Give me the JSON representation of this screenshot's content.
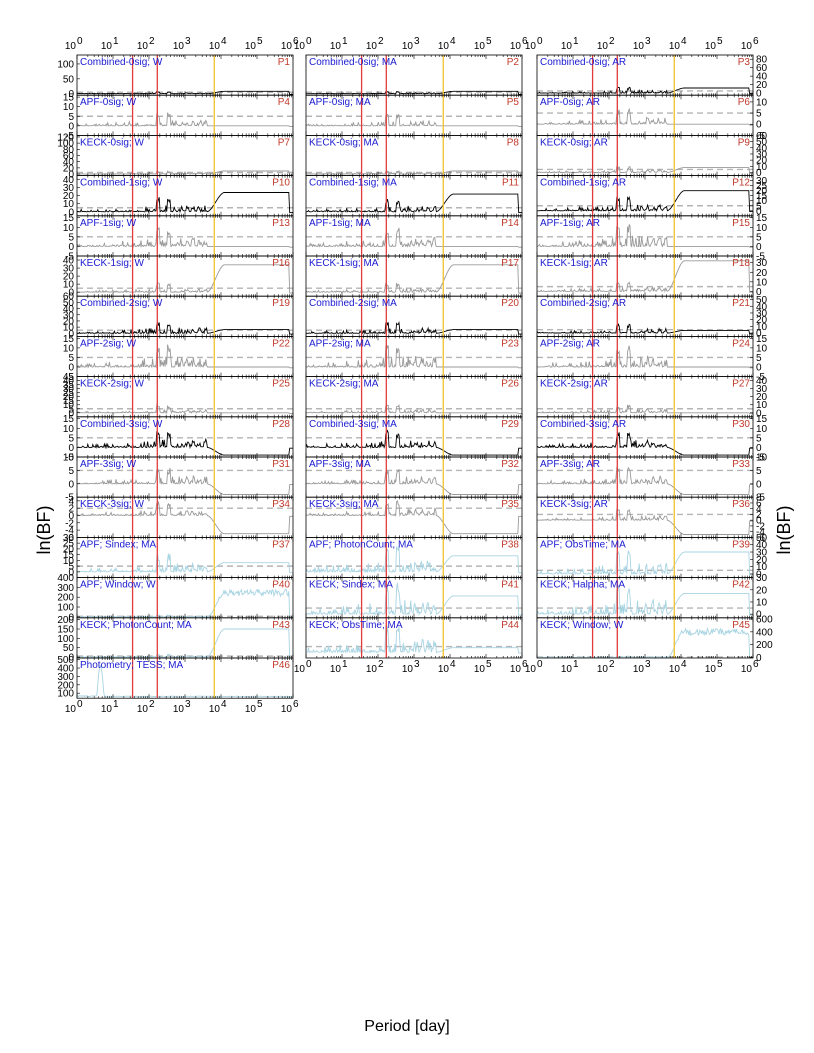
{
  "chart_data": {
    "type": "line",
    "xlabel": "Period [day]",
    "ylabel": "ln(BF)",
    "xscale": "log",
    "xlim": [
      1,
      1000000
    ],
    "x_tick_labels": [
      "10^0",
      "10^1",
      "10^2",
      "10^3",
      "10^4",
      "10^5",
      "10^6"
    ],
    "x_tick_base": "10",
    "x_tick_exponents": [
      "0",
      "1",
      "2",
      "3",
      "4",
      "5",
      "6"
    ],
    "vertical_lines": [
      {
        "period": 35,
        "color": "#e23b3b"
      },
      {
        "period": 170,
        "color": "#e23b3b"
      },
      {
        "period": 6500,
        "color": "#f2c12e"
      }
    ],
    "threshold_style": "gray dashed",
    "colors": {
      "combined": "#000000",
      "instrument": "#9a9a9a",
      "activity": "#a8d4e2",
      "title": "#1a1ad0",
      "id": "#c0392b"
    },
    "panels": [
      {
        "id": "P1",
        "title": "Combined-0sig; W",
        "col": 0,
        "row": 0,
        "ylim": [
          -5,
          130
        ],
        "yticks": [
          0,
          50,
          100
        ],
        "threshold": 5,
        "color": "combined",
        "peak": 8,
        "plateau": 8
      },
      {
        "id": "P2",
        "title": "Combined-0sig; MA",
        "col": 1,
        "row": 0,
        "ylim": [
          -5,
          130
        ],
        "yticks": [],
        "threshold": 5,
        "color": "combined",
        "peak": 8,
        "plateau": 8
      },
      {
        "id": "P3",
        "title": "Combined-0sig; AR",
        "col": 2,
        "row": 0,
        "ylim": [
          -5,
          90
        ],
        "yticks": [
          0,
          20,
          40,
          60,
          80
        ],
        "threshold": 5,
        "color": "combined",
        "peak": 14,
        "plateau": 12
      },
      {
        "id": "P4",
        "title": "APF-0sig; W",
        "col": 0,
        "row": 1,
        "ylim": [
          -5,
          16
        ],
        "yticks": [
          -5,
          0,
          5,
          10,
          15
        ],
        "threshold": 5,
        "color": "instrument",
        "peak": 7,
        "plateau": 0
      },
      {
        "id": "P5",
        "title": "APF-0sig; MA",
        "col": 1,
        "row": 1,
        "ylim": [
          -5,
          16
        ],
        "yticks": [],
        "threshold": 5,
        "color": "instrument",
        "peak": 7,
        "plateau": 0
      },
      {
        "id": "P6",
        "title": "APF-0sig; AR",
        "col": 2,
        "row": 1,
        "ylim": [
          -5,
          13
        ],
        "yticks": [
          -5,
          0,
          5,
          10
        ],
        "threshold": 5,
        "color": "instrument",
        "peak": 7,
        "plateau": 0
      },
      {
        "id": "P7",
        "title": "KECK-0sig; W",
        "col": 0,
        "row": 2,
        "ylim": [
          -5,
          125
        ],
        "yticks": [
          0,
          20,
          40,
          60,
          80,
          100,
          120
        ],
        "threshold": 5,
        "color": "instrument",
        "peak": 10,
        "plateau": 10
      },
      {
        "id": "P8",
        "title": "KECK-0sig; MA",
        "col": 1,
        "row": 2,
        "ylim": [
          -5,
          125
        ],
        "yticks": [],
        "threshold": 5,
        "color": "instrument",
        "peak": 10,
        "plateau": 10
      },
      {
        "id": "P9",
        "title": "KECK-0sig; AR",
        "col": 2,
        "row": 2,
        "ylim": [
          -5,
          60
        ],
        "yticks": [
          0,
          10,
          20,
          30,
          40,
          50,
          60
        ],
        "threshold": 5,
        "color": "instrument",
        "peak": 10,
        "plateau": 8
      },
      {
        "id": "P10",
        "title": "Combined-1sig; W",
        "col": 0,
        "row": 3,
        "ylim": [
          -5,
          45
        ],
        "yticks": [
          0,
          10,
          20,
          30,
          40
        ],
        "threshold": 5,
        "color": "combined",
        "peak": 18,
        "plateau": 24
      },
      {
        "id": "P11",
        "title": "Combined-1sig; MA",
        "col": 1,
        "row": 3,
        "ylim": [
          -5,
          45
        ],
        "yticks": [],
        "threshold": 5,
        "color": "combined",
        "peak": 16,
        "plateau": 22
      },
      {
        "id": "P12",
        "title": "Combined-1sig; AR",
        "col": 2,
        "row": 3,
        "ylim": [
          -5,
          35
        ],
        "yticks": [
          0,
          5,
          10,
          15,
          20,
          25,
          30
        ],
        "threshold": 5,
        "color": "combined",
        "peak": 14,
        "plateau": 20
      },
      {
        "id": "P13",
        "title": "APF-1sig; W",
        "col": 0,
        "row": 4,
        "ylim": [
          -5,
          16
        ],
        "yticks": [
          -5,
          0,
          5,
          10,
          15
        ],
        "threshold": 5,
        "color": "instrument",
        "peak": 10,
        "plateau": 0
      },
      {
        "id": "P14",
        "title": "APF-1sig; MA",
        "col": 1,
        "row": 4,
        "ylim": [
          -5,
          16
        ],
        "yticks": [],
        "threshold": 5,
        "color": "instrument",
        "peak": 10,
        "plateau": 0
      },
      {
        "id": "P15",
        "title": "APF-1sig; AR",
        "col": 2,
        "row": 4,
        "ylim": [
          -5,
          16
        ],
        "yticks": [
          -5,
          0,
          5,
          10,
          15
        ],
        "threshold": 5,
        "color": "instrument",
        "peak": 12,
        "plateau": 0
      },
      {
        "id": "P16",
        "title": "KECK-1sig; W",
        "col": 0,
        "row": 5,
        "ylim": [
          -5,
          45
        ],
        "yticks": [
          0,
          10,
          20,
          30,
          40
        ],
        "threshold": 5,
        "color": "instrument",
        "peak": 12,
        "plateau": 34
      },
      {
        "id": "P17",
        "title": "KECK-1sig; MA",
        "col": 1,
        "row": 5,
        "ylim": [
          -5,
          45
        ],
        "yticks": [],
        "threshold": 5,
        "color": "instrument",
        "peak": 12,
        "plateau": 34
      },
      {
        "id": "P18",
        "title": "KECK-1sig; AR",
        "col": 2,
        "row": 5,
        "ylim": [
          -5,
          37
        ],
        "yticks": [
          0,
          10,
          20,
          30
        ],
        "threshold": 5,
        "color": "instrument",
        "peak": 10,
        "plateau": 32
      },
      {
        "id": "P19",
        "title": "Combined-2sig; W",
        "col": 0,
        "row": 6,
        "ylim": [
          -5,
          60
        ],
        "yticks": [
          0,
          10,
          20,
          30,
          40,
          50,
          60
        ],
        "threshold": 5,
        "color": "combined",
        "peak": 20,
        "plateau": 6
      },
      {
        "id": "P20",
        "title": "Combined-2sig; MA",
        "col": 1,
        "row": 6,
        "ylim": [
          -5,
          60
        ],
        "yticks": [],
        "threshold": 5,
        "color": "combined",
        "peak": 18,
        "plateau": 6
      },
      {
        "id": "P21",
        "title": "Combined-2sig; AR",
        "col": 2,
        "row": 6,
        "ylim": [
          -5,
          55
        ],
        "yticks": [
          0,
          10,
          20,
          30,
          40,
          50
        ],
        "threshold": 5,
        "color": "combined",
        "peak": 14,
        "plateau": 4
      },
      {
        "id": "P22",
        "title": "APF-2sig; W",
        "col": 0,
        "row": 7,
        "ylim": [
          -5,
          16
        ],
        "yticks": [
          -5,
          0,
          5,
          10,
          15
        ],
        "threshold": 5,
        "color": "instrument",
        "peak": 12,
        "plateau": 0
      },
      {
        "id": "P23",
        "title": "APF-2sig; MA",
        "col": 1,
        "row": 7,
        "ylim": [
          -5,
          16
        ],
        "yticks": [],
        "threshold": 5,
        "color": "instrument",
        "peak": 12,
        "plateau": 0
      },
      {
        "id": "P24",
        "title": "APF-2sig; AR",
        "col": 2,
        "row": 7,
        "ylim": [
          -5,
          16
        ],
        "yticks": [
          -5,
          0,
          5,
          10,
          15
        ],
        "threshold": 5,
        "color": "instrument",
        "peak": 12,
        "plateau": 0
      },
      {
        "id": "P25",
        "title": "KECK-2sig; W",
        "col": 0,
        "row": 8,
        "ylim": [
          -5,
          45
        ],
        "yticks": [
          0,
          5,
          10,
          15,
          20,
          25,
          30,
          35,
          40,
          45
        ],
        "threshold": 5,
        "color": "instrument",
        "peak": 10,
        "plateau": 0
      },
      {
        "id": "P26",
        "title": "KECK-2sig; MA",
        "col": 1,
        "row": 8,
        "ylim": [
          -5,
          45
        ],
        "yticks": [],
        "threshold": 5,
        "color": "instrument",
        "peak": 10,
        "plateau": 0
      },
      {
        "id": "P27",
        "title": "KECK-2sig; AR",
        "col": 2,
        "row": 8,
        "ylim": [
          -5,
          45
        ],
        "yticks": [
          0,
          10,
          20,
          30,
          40
        ],
        "threshold": 5,
        "color": "instrument",
        "peak": 10,
        "plateau": 0
      },
      {
        "id": "P28",
        "title": "Combined-3sig; W",
        "col": 0,
        "row": 9,
        "ylim": [
          -5,
          16
        ],
        "yticks": [
          -5,
          0,
          5,
          10,
          15
        ],
        "threshold": 5,
        "color": "combined",
        "peak": 9,
        "plateau": -4
      },
      {
        "id": "P29",
        "title": "Combined-3sig; MA",
        "col": 1,
        "row": 9,
        "ylim": [
          -5,
          16
        ],
        "yticks": [],
        "threshold": 5,
        "color": "combined",
        "peak": 9,
        "plateau": -4
      },
      {
        "id": "P30",
        "title": "Combined-3sig; AR",
        "col": 2,
        "row": 9,
        "ylim": [
          -5,
          16
        ],
        "yticks": [
          -5,
          0,
          5,
          10,
          15
        ],
        "threshold": 5,
        "color": "combined",
        "peak": 8,
        "plateau": -4
      },
      {
        "id": "P31",
        "title": "APF-3sig; W",
        "col": 0,
        "row": 10,
        "ylim": [
          -5,
          10
        ],
        "yticks": [
          -5,
          0,
          5,
          10
        ],
        "threshold": 5,
        "color": "instrument",
        "peak": 6,
        "plateau": -4
      },
      {
        "id": "P32",
        "title": "APF-3sig; MA",
        "col": 1,
        "row": 10,
        "ylim": [
          -5,
          10
        ],
        "yticks": [],
        "threshold": 5,
        "color": "instrument",
        "peak": 6,
        "plateau": -4
      },
      {
        "id": "P33",
        "title": "APF-3sig; AR",
        "col": 2,
        "row": 10,
        "ylim": [
          -5,
          10
        ],
        "yticks": [
          -5,
          0,
          5,
          10
        ],
        "threshold": 5,
        "color": "instrument",
        "peak": 6,
        "plateau": -4
      },
      {
        "id": "P34",
        "title": "KECK-3sig; W",
        "col": 0,
        "row": 11,
        "ylim": [
          -6,
          5
        ],
        "yticks": [
          -6,
          -4,
          -2,
          0,
          2,
          4
        ],
        "threshold": 2,
        "color": "instrument",
        "peak": 4,
        "plateau": -5
      },
      {
        "id": "P35",
        "title": "KECK-3sig; MA",
        "col": 1,
        "row": 11,
        "ylim": [
          -6,
          5
        ],
        "yticks": [],
        "threshold": 2,
        "color": "instrument",
        "peak": 4,
        "plateau": -5
      },
      {
        "id": "P36",
        "title": "KECK-3sig; AR",
        "col": 2,
        "row": 11,
        "ylim": [
          -6,
          8
        ],
        "yticks": [
          -6,
          -4,
          -2,
          0,
          2,
          4,
          6,
          8
        ],
        "threshold": 2,
        "color": "instrument",
        "peak": 4,
        "plateau": -5
      },
      {
        "id": "P37",
        "title": "APF; Sindex; MA",
        "col": 0,
        "row": 12,
        "ylim": [
          -5,
          30
        ],
        "yticks": [
          0,
          5,
          10,
          15,
          20,
          25,
          30
        ],
        "threshold": 5,
        "color": "activity",
        "peak": 16,
        "plateau": 8
      },
      {
        "id": "P38",
        "title": "APF; PhotonCount; MA",
        "col": 1,
        "row": 12,
        "ylim": [
          -5,
          30
        ],
        "yticks": [],
        "threshold": 5,
        "color": "activity",
        "peak": 25,
        "plateau": 14
      },
      {
        "id": "P39",
        "title": "APF; ObsTime; MA",
        "col": 2,
        "row": 12,
        "ylim": [
          -5,
          50
        ],
        "yticks": [
          0,
          10,
          20,
          30,
          40,
          50
        ],
        "threshold": 5,
        "color": "activity",
        "peak": 32,
        "plateau": 30
      },
      {
        "id": "P40",
        "title": "APF; Window; W",
        "col": 0,
        "row": 13,
        "ylim": [
          -10,
          400
        ],
        "yticks": [
          0,
          100,
          200,
          300,
          400
        ],
        "threshold": 5,
        "color": "activity",
        "peak": 20,
        "plateau": 280,
        "window": true
      },
      {
        "id": "P41",
        "title": "KECK; Sindex; MA",
        "col": 1,
        "row": 13,
        "ylim": [
          -3,
          30
        ],
        "yticks": [],
        "threshold": 5,
        "color": "activity",
        "peak": 26,
        "plateau": 15
      },
      {
        "id": "P42",
        "title": "KECK; Halpha; MA",
        "col": 2,
        "row": 13,
        "ylim": [
          -3,
          30
        ],
        "yticks": [
          0,
          10,
          20,
          30
        ],
        "threshold": 5,
        "color": "activity",
        "peak": 24,
        "plateau": 17
      },
      {
        "id": "P43",
        "title": "KECK; PhotonCount; MA",
        "col": 0,
        "row": 14,
        "ylim": [
          -5,
          210
        ],
        "yticks": [
          0,
          50,
          100,
          150,
          200
        ],
        "threshold": 5,
        "color": "activity",
        "peak": 15,
        "plateau": 150
      },
      {
        "id": "P44",
        "title": "KECK; ObsTime; MA",
        "col": 1,
        "row": 14,
        "ylim": [
          -5,
          30
        ],
        "yticks": [],
        "threshold": 5,
        "color": "activity",
        "peak": 25,
        "plateau": 4
      },
      {
        "id": "P45",
        "title": "KECK; Window; W",
        "col": 2,
        "row": 14,
        "ylim": [
          -10,
          620
        ],
        "yticks": [
          0,
          200,
          400,
          600
        ],
        "threshold": 5,
        "color": "activity",
        "peak": 20,
        "plateau": 460,
        "window": true
      },
      {
        "id": "P46",
        "title": "Photometry; TESS; MA",
        "col": 0,
        "row": 15,
        "ylim": [
          40,
          520
        ],
        "yticks": [
          100,
          200,
          300,
          400,
          500
        ],
        "threshold": 5,
        "color": "activity",
        "peak": 430,
        "plateau": 60,
        "tess": true
      }
    ]
  }
}
